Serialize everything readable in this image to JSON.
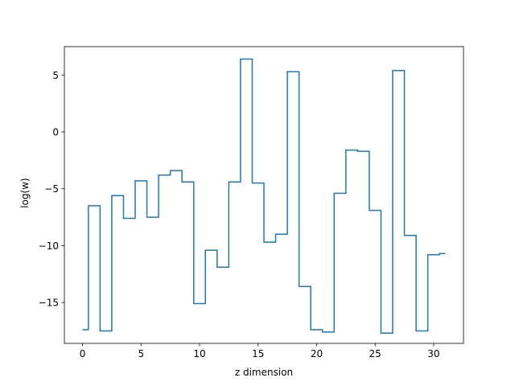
{
  "chart_data": {
    "type": "line",
    "step": "mid",
    "title": "",
    "xlabel": "z dimension",
    "ylabel": "log(w)",
    "xlim": [
      -1.55,
      32.55
    ],
    "ylim": [
      -18.6,
      7.5
    ],
    "xticks": [
      0,
      5,
      10,
      15,
      20,
      25,
      30
    ],
    "yticks": [
      -15,
      -10,
      -5,
      0,
      5
    ],
    "xtick_labels": [
      "0",
      "5",
      "10",
      "15",
      "20",
      "25",
      "30"
    ],
    "ytick_labels": [
      "−15",
      "−10",
      "−5",
      "0",
      "5"
    ],
    "grid": false,
    "legend": "none",
    "color": "#1f77b4",
    "series": [
      {
        "x": [
          0,
          1,
          2,
          3,
          4,
          5,
          6,
          7,
          8,
          9,
          10,
          11,
          12,
          13,
          14,
          15,
          16,
          17,
          18,
          19,
          20,
          21,
          22,
          23,
          24,
          25,
          26,
          27,
          28,
          29,
          30,
          31
        ],
        "values": [
          -17.4,
          -6.5,
          -17.5,
          -5.6,
          -7.6,
          -4.3,
          -7.5,
          -3.8,
          -3.4,
          -4.4,
          -15.1,
          -10.4,
          -11.9,
          -4.4,
          6.4,
          -4.5,
          -9.7,
          -9.0,
          5.3,
          -13.6,
          -17.4,
          -17.6,
          -5.4,
          -1.6,
          -1.7,
          -6.9,
          -17.7,
          5.4,
          -9.1,
          -17.5,
          -10.8,
          -10.7
        ]
      }
    ]
  }
}
